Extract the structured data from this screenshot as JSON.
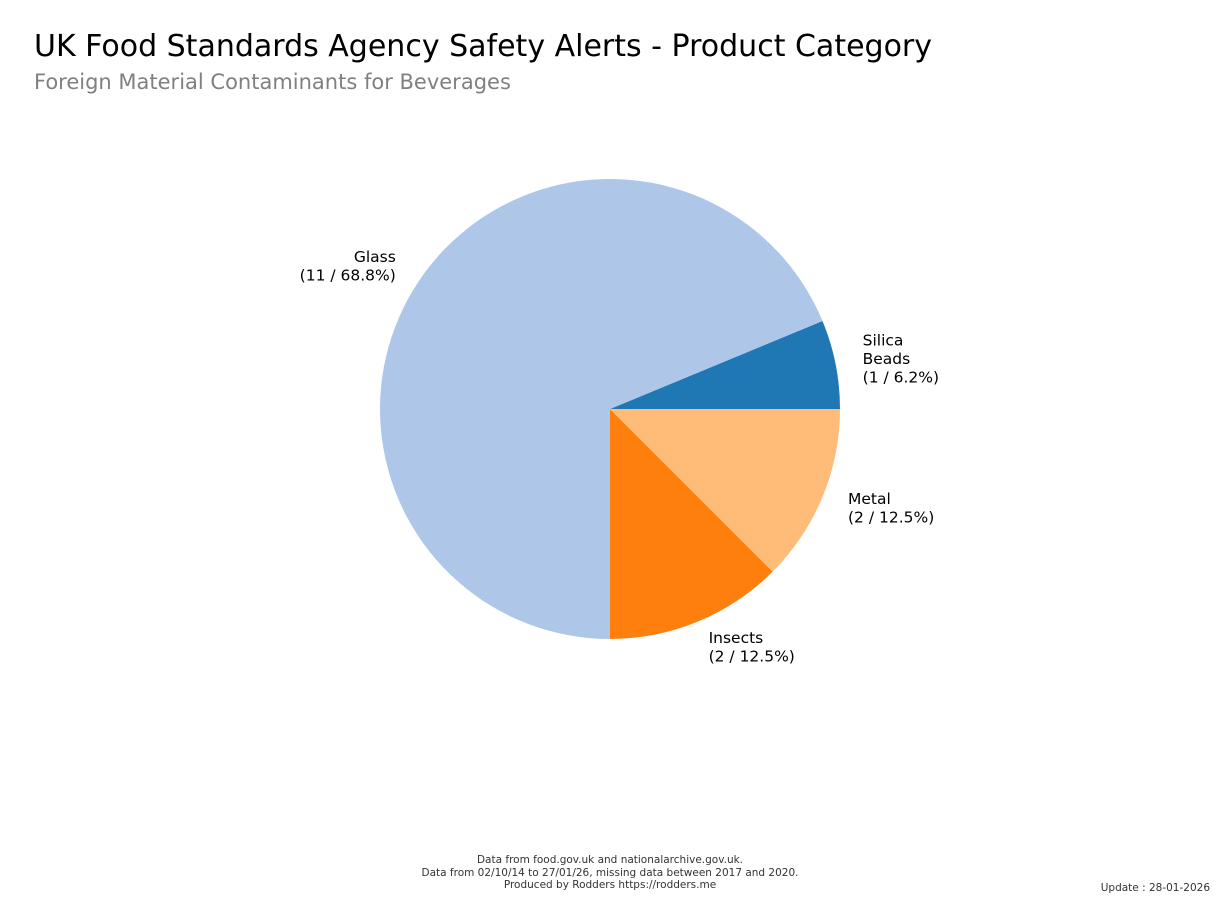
{
  "header": {
    "title": "UK Food Standards Agency Safety Alerts - Product Category",
    "subtitle": "Foreign Material Contaminants for Beverages"
  },
  "chart_data": {
    "type": "pie",
    "title": "UK Food Standards Agency Safety Alerts - Product Category",
    "subtitle": "Foreign Material Contaminants for Beverages",
    "start_angle_deg": 0,
    "direction": "counterclockwise",
    "slices": [
      {
        "label_lines": [
          "Silica",
          "Beads",
          "(1 / 6.2%)"
        ],
        "value": 1,
        "percent": 6.2,
        "color": "#1f77b4"
      },
      {
        "label_lines": [
          "Glass",
          "(11 / 68.8%)"
        ],
        "value": 11,
        "percent": 68.8,
        "color": "#aec7e8"
      },
      {
        "label_lines": [
          "Insects",
          "(2 / 12.5%)"
        ],
        "value": 2,
        "percent": 12.5,
        "color": "#ff7f0e"
      },
      {
        "label_lines": [
          "Metal",
          "(2 / 12.5%)"
        ],
        "value": 2,
        "percent": 12.5,
        "color": "#ffbb78"
      }
    ]
  },
  "footer": {
    "line1": "Data from food.gov.uk and nationalarchive.gov.uk.",
    "line2": "Data from 02/10/14 to 27/01/26, missing data between 2017 and 2020.",
    "line3": "Produced by Rodders https://rodders.me",
    "update": "Update : 28-01-2026"
  }
}
